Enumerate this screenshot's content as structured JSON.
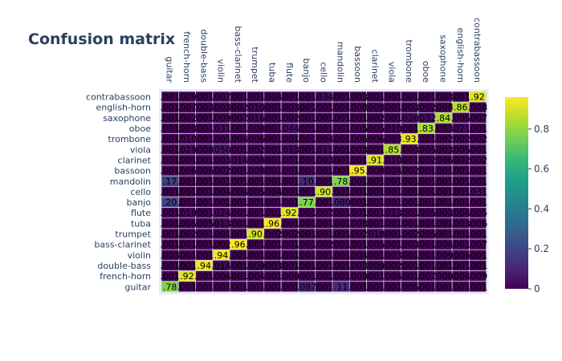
{
  "chart_data": {
    "type": "heatmap",
    "title": "Confusion matrix",
    "x_categories": [
      "guitar",
      "french-horn",
      "double-bass",
      "violin",
      "bass-clarinet",
      "trumpet",
      "tuba",
      "flute",
      "banjo",
      "cello",
      "mandolin",
      "bassoon",
      "clarinet",
      "viola",
      "trombone",
      "oboe",
      "saxophone",
      "english-horn",
      "contrabassoon"
    ],
    "y_categories": [
      "contrabassoon",
      "english-horn",
      "saxophone",
      "oboe",
      "trombone",
      "viola",
      "clarinet",
      "bassoon",
      "mandolin",
      "cello",
      "banjo",
      "flute",
      "tuba",
      "trumpet",
      "bass-clarinet",
      "violin",
      "double-bass",
      "french-horn",
      "guitar"
    ],
    "values": [
      [
        0.001,
        0.009,
        0.001,
        0.007,
        0.001,
        0.001,
        0.004,
        0.001,
        0.001,
        0.034,
        0.001,
        0.003,
        0.001,
        0.001,
        0.001,
        0.001,
        0.003,
        0.001,
        0.915
      ],
      [
        0.001,
        0.007,
        0.003,
        0.003,
        0.002,
        0.01,
        0.001,
        0.003,
        0.001,
        0.001,
        0.001,
        0.008,
        0.008,
        0.001,
        0.003,
        0.002,
        0.008,
        0.86,
        0.008
      ],
      [
        0.001,
        0.002,
        0.001,
        0.009,
        0.007,
        0.016,
        0.001,
        0.002,
        0.001,
        0.001,
        0.001,
        0.001,
        0.002,
        0.001,
        0.02,
        0.032,
        0.84,
        0.005,
        0.007
      ],
      [
        0.001,
        0.003,
        0.001,
        0.031,
        0.001,
        0.008,
        0.001,
        0.044,
        0.001,
        0.001,
        0.001,
        0.005,
        0.005,
        0.01,
        0.001,
        0.83,
        0.003,
        0.021,
        0.001
      ],
      [
        0.001,
        0.018,
        0.001,
        0.001,
        0.004,
        0.006,
        0.001,
        0.001,
        0.001,
        0.004,
        0.001,
        0.006,
        0.006,
        0.003,
        0.93,
        0.001,
        0.002,
        0.002,
        0.002
      ],
      [
        0.001,
        0.029,
        0.008,
        0.05,
        0.001,
        0.002,
        0.001,
        0.013,
        0.001,
        0.011,
        0.001,
        0.003,
        0.001,
        0.85,
        0.003,
        0.005,
        0.003,
        0.005,
        0.001
      ],
      [
        0.001,
        0.001,
        0.001,
        0.003,
        0.014,
        0.008,
        0.001,
        0.001,
        0.001,
        0.003,
        0.001,
        0.001,
        0.91,
        0.01,
        0.001,
        0.002,
        0.006,
        0.002,
        0.002
      ],
      [
        0.001,
        0.006,
        0.006,
        0.002,
        0.001,
        0.008,
        0.001,
        0.001,
        0.001,
        0.001,
        0.001,
        0.95,
        0.008,
        0.004,
        0.002,
        0.001,
        0.001,
        0.001,
        0.001
      ],
      [
        0.17,
        0.001,
        0.001,
        0.001,
        0.001,
        0.001,
        0.001,
        0.001,
        0.1,
        0.001,
        0.78,
        0.001,
        0.001,
        0.001,
        0.001,
        0.001,
        0.001,
        0.001,
        0.001
      ],
      [
        0.001,
        0.001,
        0.001,
        0.004,
        0.004,
        0.005,
        0.004,
        0.001,
        0.001,
        0.9,
        0.001,
        0.001,
        0.001,
        0.001,
        0.001,
        0.001,
        0.001,
        0.001,
        0.031
      ],
      [
        0.2,
        0.001,
        0.001,
        0.001,
        0.001,
        0.001,
        0.001,
        0.001,
        0.77,
        0.001,
        0.08,
        0.001,
        0.001,
        0.001,
        0.001,
        0.001,
        0.001,
        0.001,
        0.001
      ],
      [
        0.001,
        0.019,
        0.001,
        0.024,
        0.001,
        0.001,
        0.001,
        0.92,
        0.001,
        0.007,
        0.001,
        0.001,
        0.001,
        0.013,
        0.001,
        0.005,
        0.003,
        0.004,
        0.005
      ],
      [
        0.001,
        0.005,
        0.005,
        0.013,
        0.001,
        0.001,
        0.96,
        0.001,
        0.001,
        0.001,
        0.001,
        0.008,
        0.001,
        0.001,
        0.001,
        0.001,
        0.001,
        0.003,
        0.006
      ],
      [
        0.001,
        0.002,
        0.001,
        0.001,
        0.001,
        0.9,
        0.002,
        0.002,
        0.001,
        0.001,
        0.001,
        0.002,
        0.018,
        0.001,
        0.002,
        0.005,
        0.001,
        0.001,
        0.001
      ],
      [
        0.001,
        0.001,
        0.001,
        0.002,
        0.96,
        0.001,
        0.001,
        0.001,
        0.001,
        0.002,
        0.001,
        0.001,
        0.005,
        0.001,
        0.003,
        0.001,
        0.004,
        0.001,
        0.007
      ],
      [
        0.003,
        0.001,
        0.001,
        0.94,
        0.001,
        0.001,
        0.001,
        0.001,
        0.001,
        0.001,
        0.001,
        0.004,
        0.001,
        0.003,
        0.001,
        0.001,
        0.009,
        0.006,
        0.001
      ],
      [
        0.001,
        0.001,
        0.94,
        0.014,
        0.001,
        0.009,
        0.003,
        0.001,
        0.001,
        0.001,
        0.001,
        0.003,
        0.009,
        0.002,
        0.001,
        0.001,
        0.001,
        0.001,
        0.001
      ],
      [
        0.001,
        0.92,
        0.001,
        0.004,
        0.001,
        0.004,
        0.001,
        0.009,
        0.001,
        0.001,
        0.001,
        0.009,
        0.001,
        0.004,
        0.001,
        0.007,
        0.009,
        0.004,
        0.009
      ],
      [
        0.78,
        0.001,
        0.001,
        0.001,
        0.001,
        0.001,
        0.001,
        0.001,
        0.087,
        0.001,
        0.11,
        0.001,
        0.001,
        0.001,
        0.005,
        0.001,
        0.001,
        0.001,
        0.001
      ]
    ],
    "colorscale": "viridis",
    "zlim": [
      0,
      0.96
    ],
    "colorbar_ticks": [
      0,
      0.2,
      0.4,
      0.6,
      0.8
    ]
  }
}
